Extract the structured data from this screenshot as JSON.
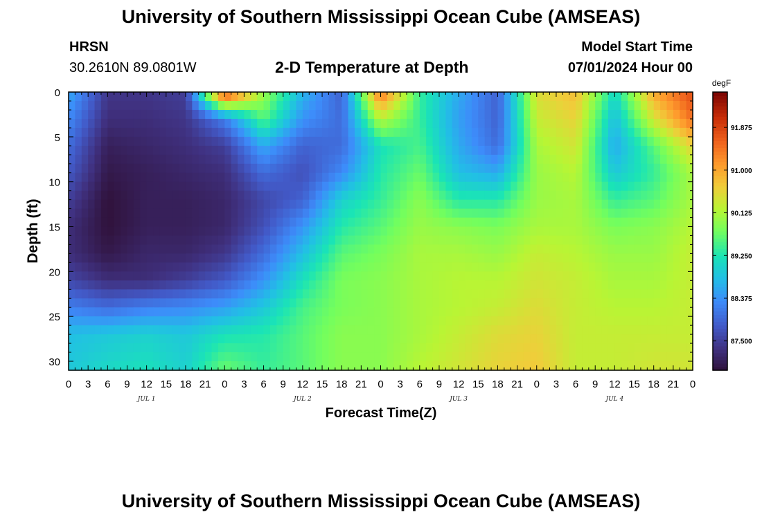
{
  "header": {
    "title_top": "University of Southern Mississippi Ocean Cube (AMSEAS)",
    "title_bottom": "University of Southern Mississippi Ocean Cube (AMSEAS)",
    "station": "HRSN",
    "coords": "30.2610N  89.0801W",
    "subtitle": "2-D Temperature at Depth",
    "model_label": "Model Start Time",
    "model_time": "07/01/2024 Hour 00"
  },
  "chart_data": {
    "type": "heatmap",
    "title": "2-D Temperature at Depth",
    "xlabel": "Forecast Time(Z)",
    "ylabel": "Depth (ft)",
    "x_unit": "hours since 07/01/2024 00Z",
    "xlim": [
      0,
      96
    ],
    "ylim": [
      0,
      31
    ],
    "x_ticks": [
      0,
      3,
      6,
      9,
      12,
      15,
      18,
      21,
      24,
      27,
      30,
      33,
      36,
      39,
      42,
      45,
      48,
      51,
      54,
      57,
      60,
      63,
      66,
      69,
      72,
      75,
      78,
      81,
      84,
      87,
      90,
      93,
      96
    ],
    "x_tick_labels": [
      "0",
      "3",
      "6",
      "9",
      "12",
      "15",
      "18",
      "21",
      "0",
      "3",
      "6",
      "9",
      "12",
      "15",
      "18",
      "21",
      "0",
      "3",
      "6",
      "9",
      "12",
      "15",
      "18",
      "21",
      "0",
      "3",
      "6",
      "9",
      "12",
      "15",
      "18",
      "21",
      "0"
    ],
    "date_labels": [
      {
        "label": "JUL 1",
        "hour": 12
      },
      {
        "label": "JUL 2",
        "hour": 36
      },
      {
        "label": "JUL 3",
        "hour": 60
      },
      {
        "label": "JUL 4",
        "hour": 84
      }
    ],
    "y_ticks": [
      0,
      5,
      10,
      15,
      20,
      25,
      30
    ],
    "y_tick_labels": [
      "0",
      "5",
      "10",
      "15",
      "20",
      "25",
      "30"
    ],
    "colorbar": {
      "unit": "degF",
      "range": [
        86.9,
        92.6
      ],
      "ticks": [
        87.5,
        88.375,
        89.25,
        90.125,
        91.0,
        91.875
      ],
      "tick_labels": [
        "87.500",
        "88.375",
        "89.250",
        "90.125",
        "91.000",
        "91.875"
      ]
    },
    "grid_hours": [
      0,
      6,
      12,
      18,
      24,
      30,
      36,
      42,
      48,
      54,
      60,
      66,
      72,
      78,
      84,
      90,
      96
    ],
    "grid_depths": [
      0,
      3,
      6,
      9,
      12,
      15,
      18,
      21,
      24,
      27,
      31
    ],
    "values_degF": [
      [
        88.6,
        87.4,
        87.4,
        87.5,
        92.0,
        90.0,
        88.7,
        87.9,
        91.5,
        89.4,
        88.6,
        87.9,
        90.5,
        90.8,
        89.1,
        91.0,
        91.8
      ],
      [
        88.3,
        87.3,
        87.3,
        87.4,
        88.2,
        89.6,
        88.4,
        88.0,
        90.2,
        89.4,
        88.5,
        87.9,
        90.3,
        90.6,
        88.8,
        90.4,
        91.5
      ],
      [
        88.0,
        87.1,
        87.2,
        87.3,
        87.5,
        88.6,
        87.9,
        88.0,
        89.2,
        89.5,
        88.6,
        88.0,
        90.1,
        90.4,
        88.6,
        89.6,
        90.6
      ],
      [
        87.8,
        87.0,
        87.1,
        87.2,
        87.3,
        88.0,
        87.7,
        88.3,
        89.3,
        89.7,
        88.8,
        88.6,
        90.0,
        90.2,
        88.9,
        89.4,
        90.1
      ],
      [
        87.5,
        86.9,
        87.1,
        87.1,
        87.2,
        87.6,
        87.9,
        89.0,
        89.4,
        89.9,
        89.3,
        89.3,
        90.0,
        90.1,
        89.4,
        89.6,
        90.1
      ],
      [
        87.3,
        86.9,
        87.1,
        87.1,
        87.2,
        87.7,
        88.4,
        89.3,
        89.6,
        90.0,
        89.9,
        89.8,
        90.1,
        90.1,
        89.8,
        89.9,
        90.2
      ],
      [
        87.3,
        87.0,
        87.2,
        87.2,
        87.4,
        88.0,
        88.8,
        89.6,
        89.8,
        90.1,
        90.1,
        90.0,
        90.3,
        90.2,
        90.0,
        90.0,
        90.3
      ],
      [
        87.6,
        87.3,
        87.3,
        87.5,
        87.8,
        88.4,
        89.2,
        89.8,
        89.9,
        90.1,
        90.2,
        90.2,
        90.4,
        90.3,
        90.1,
        90.1,
        90.3
      ],
      [
        88.2,
        88.0,
        88.2,
        88.3,
        88.5,
        88.9,
        89.5,
        89.8,
        89.9,
        90.1,
        90.2,
        90.3,
        90.5,
        90.3,
        90.2,
        90.2,
        90.3
      ],
      [
        88.8,
        88.9,
        89.0,
        88.9,
        89.2,
        89.3,
        89.6,
        89.9,
        89.9,
        90.1,
        90.3,
        90.5,
        90.6,
        90.3,
        90.3,
        90.3,
        90.3
      ],
      [
        88.9,
        89.1,
        89.2,
        89.0,
        89.7,
        89.4,
        89.6,
        89.9,
        89.9,
        90.2,
        90.4,
        90.6,
        90.7,
        90.3,
        90.3,
        90.4,
        90.4
      ]
    ]
  }
}
